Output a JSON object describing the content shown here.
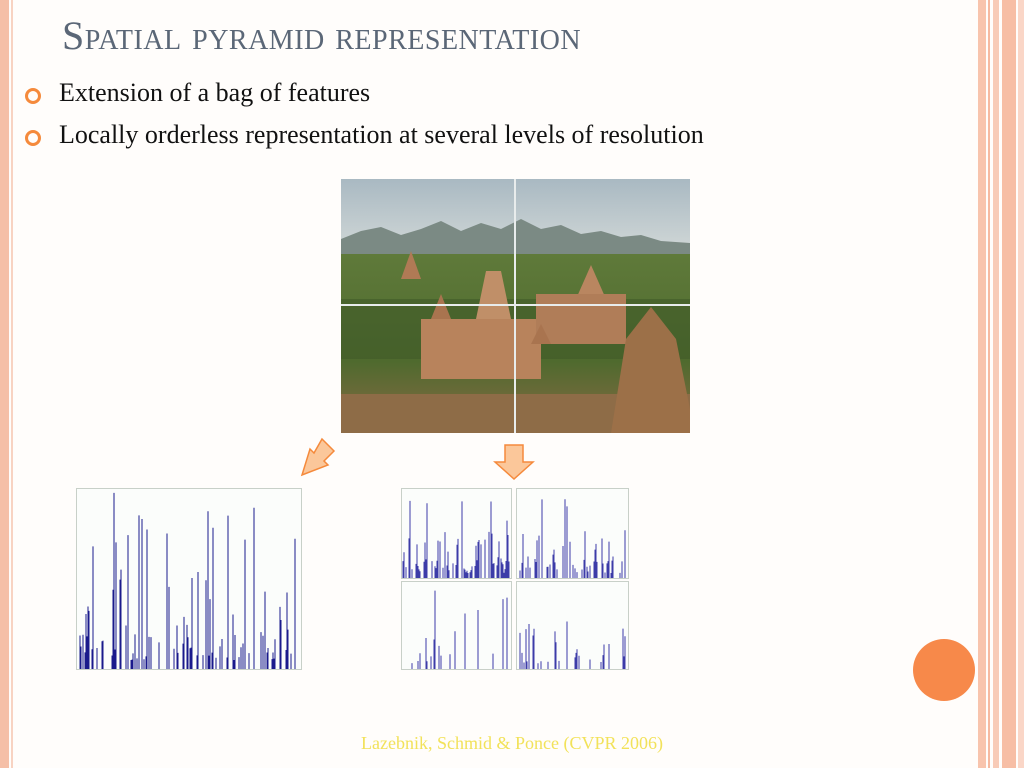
{
  "slide": {
    "title": "Spatial pyramid representation",
    "bullets": [
      "Extension of a bag of features",
      "Locally orderless representation at several levels of resolution"
    ],
    "citation": "Lazebnik, Schmid & Ponce (CVPR 2006)"
  },
  "colors": {
    "title": "#5b6777",
    "bullet_mark": "#f58a3c",
    "accent": "#f7894a",
    "histogram_bar": "#1a1a8c",
    "citation": "#f2e25a"
  },
  "figure": {
    "photo": "temple landscape with mountains, divided into a 2x2 grid",
    "arrows": [
      "down-left-arrow-icon",
      "down-arrow-icon"
    ],
    "level0_bins": [
      28,
      0,
      0,
      35,
      0,
      0,
      18,
      0,
      5,
      0,
      0,
      28,
      0,
      0,
      0,
      5,
      15,
      22,
      0,
      10,
      0,
      0,
      30,
      0,
      30,
      0,
      0,
      18,
      0,
      45,
      0,
      0,
      75,
      0,
      0,
      0,
      20,
      0,
      0,
      0,
      0,
      0,
      0,
      0,
      0,
      0,
      0,
      0,
      0,
      0,
      0,
      0,
      12,
      0,
      0,
      0,
      0,
      0,
      0,
      0,
      0,
      0,
      0,
      0,
      0,
      0,
      0,
      0,
      5,
      0,
      10,
      0,
      0,
      0,
      0,
      0,
      0,
      0,
      0,
      0,
      0,
      0,
      0,
      0,
      0,
      0,
      0,
      0,
      0,
      0,
      0,
      0,
      0,
      0,
      0,
      0,
      0,
      0,
      0,
      0,
      0,
      0,
      0,
      0,
      0,
      0,
      0,
      0,
      0,
      0,
      0,
      0,
      0,
      0,
      0,
      0,
      0,
      0,
      0,
      0,
      0,
      0,
      0,
      0,
      0,
      0,
      0,
      0,
      0,
      0,
      0,
      0,
      0,
      0,
      0,
      0,
      0,
      0,
      0,
      0,
      0,
      0,
      0,
      0,
      0,
      0,
      0,
      0,
      0,
      0,
      0,
      0,
      0,
      0,
      0,
      0,
      0,
      0,
      0,
      0,
      0,
      0,
      0,
      0,
      0,
      0,
      0,
      0,
      0,
      0,
      0,
      0,
      0,
      0,
      0,
      0,
      0,
      0,
      0,
      0,
      0,
      0,
      0,
      0,
      0,
      0,
      0,
      0,
      0,
      0,
      0,
      0,
      0,
      0,
      0,
      0,
      0,
      0,
      0,
      0,
      0,
      0,
      0,
      0,
      0,
      0,
      0,
      0,
      0,
      0,
      0,
      0,
      0,
      0,
      0,
      0,
      0,
      0,
      0,
      0,
      0,
      0,
      0,
      0,
      0,
      0,
      0,
      0,
      0,
      0,
      0,
      0
    ]
  }
}
